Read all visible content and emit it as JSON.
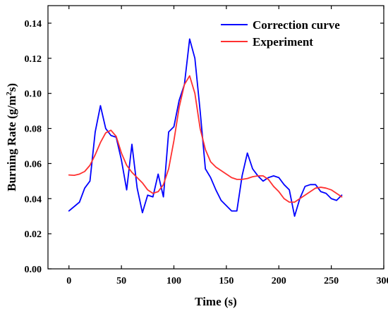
{
  "chart_data": {
    "type": "line",
    "title": "",
    "xlabel": "Time (s)",
    "ylabel": {
      "prefix": "Burning Rate (g/m",
      "superscript": "2",
      "suffix": "s)"
    },
    "xlim": [
      -20,
      300
    ],
    "ylim": [
      0,
      0.15
    ],
    "x_ticks": [
      0,
      50,
      100,
      150,
      200,
      250,
      300
    ],
    "x_tick_labels": [
      "0",
      "50",
      "100",
      "150",
      "200",
      "250",
      "300"
    ],
    "y_ticks": [
      0,
      0.02,
      0.04,
      0.06,
      0.08,
      0.1,
      0.12,
      0.14
    ],
    "y_tick_labels": [
      "0.00",
      "0.02",
      "0.04",
      "0.06",
      "0.08",
      "0.10",
      "0.12",
      "0.14"
    ],
    "grid": false,
    "legend_position": "top-right",
    "series": [
      {
        "name": "Correction curve",
        "color": "#0000ff",
        "x": [
          0,
          10,
          15,
          20,
          25,
          30,
          35,
          40,
          45,
          50,
          55,
          60,
          65,
          70,
          75,
          80,
          85,
          90,
          95,
          100,
          105,
          110,
          115,
          120,
          125,
          130,
          135,
          140,
          145,
          150,
          155,
          160,
          165,
          170,
          175,
          180,
          185,
          190,
          195,
          200,
          205,
          210,
          215,
          220,
          225,
          230,
          235,
          240,
          245,
          250,
          255,
          260
        ],
        "y": [
          0.033,
          0.038,
          0.046,
          0.05,
          0.078,
          0.093,
          0.08,
          0.076,
          0.075,
          0.062,
          0.045,
          0.071,
          0.046,
          0.032,
          0.042,
          0.041,
          0.054,
          0.041,
          0.078,
          0.081,
          0.096,
          0.105,
          0.131,
          0.12,
          0.09,
          0.057,
          0.052,
          0.045,
          0.039,
          0.036,
          0.033,
          0.033,
          0.053,
          0.066,
          0.057,
          0.053,
          0.05,
          0.052,
          0.053,
          0.052,
          0.048,
          0.045,
          0.03,
          0.04,
          0.047,
          0.048,
          0.048,
          0.044,
          0.043,
          0.04,
          0.039,
          0.042
        ]
      },
      {
        "name": "Experiment",
        "color": "#ff3030",
        "x": [
          0,
          5,
          10,
          15,
          20,
          25,
          30,
          35,
          40,
          45,
          50,
          55,
          60,
          65,
          70,
          75,
          80,
          85,
          90,
          95,
          100,
          105,
          110,
          115,
          120,
          125,
          130,
          135,
          140,
          145,
          150,
          155,
          160,
          165,
          170,
          175,
          180,
          185,
          190,
          195,
          200,
          205,
          210,
          215,
          220,
          225,
          230,
          235,
          240,
          245,
          250,
          255,
          260
        ],
        "y": [
          0.0535,
          0.0533,
          0.054,
          0.0555,
          0.059,
          0.065,
          0.072,
          0.0775,
          0.079,
          0.0755,
          0.066,
          0.059,
          0.055,
          0.052,
          0.049,
          0.045,
          0.043,
          0.044,
          0.048,
          0.057,
          0.073,
          0.092,
          0.105,
          0.11,
          0.1,
          0.08,
          0.068,
          0.061,
          0.058,
          0.056,
          0.054,
          0.052,
          0.051,
          0.051,
          0.0515,
          0.0525,
          0.053,
          0.053,
          0.051,
          0.047,
          0.044,
          0.04,
          0.038,
          0.038,
          0.04,
          0.042,
          0.044,
          0.046,
          0.0465,
          0.046,
          0.045,
          0.043,
          0.041
        ]
      }
    ]
  }
}
